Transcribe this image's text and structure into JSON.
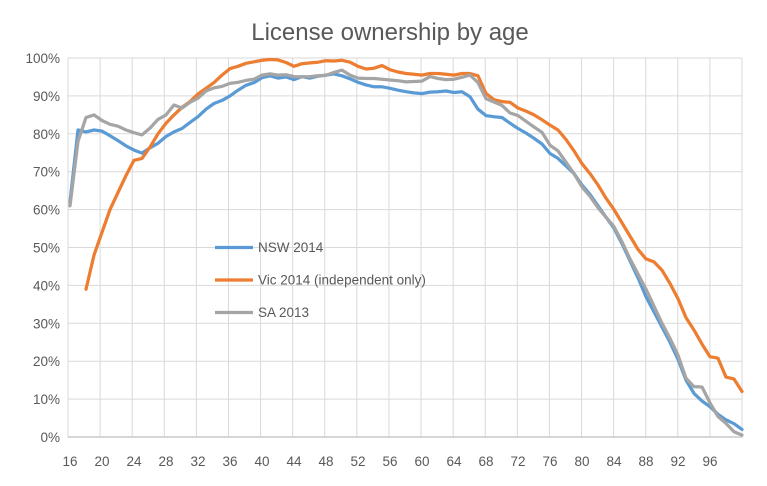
{
  "chart_data": {
    "type": "line",
    "title": "License ownership by age",
    "xlabel": "",
    "ylabel": "",
    "x_range": [
      16,
      100
    ],
    "x_tick_labels": [
      16,
      20,
      24,
      28,
      32,
      36,
      40,
      44,
      48,
      52,
      56,
      60,
      64,
      68,
      72,
      76,
      80,
      84,
      88,
      92,
      96
    ],
    "y_axis": {
      "min": 0,
      "max": 100,
      "step": 10,
      "tick_labels": [
        "0%",
        "10%",
        "20%",
        "30%",
        "40%",
        "50%",
        "60%",
        "70%",
        "80%",
        "90%",
        "100%"
      ]
    },
    "grid": true,
    "legend_position": "inside-left-middle",
    "series": [
      {
        "name": "NSW 2014",
        "color": "#5B9BD5",
        "start_age": 16,
        "values": [
          62,
          81,
          80.5,
          81,
          80.7,
          79.5,
          78.2,
          76.8,
          75.7,
          74.9,
          76.3,
          77.5,
          79.3,
          80.5,
          81.4,
          83,
          84.5,
          86.5,
          88,
          88.8,
          90,
          91.5,
          92.8,
          93.5,
          94.8,
          95.3,
          94.7,
          95,
          94.3,
          95.1,
          94.7,
          95.2,
          95.5,
          95.8,
          95.3,
          94.5,
          93.6,
          92.9,
          92.4,
          92.4,
          92,
          91.5,
          91.1,
          90.8,
          90.6,
          91,
          91.1,
          91.3,
          90.9,
          91.1,
          89.8,
          86.5,
          84.8,
          84.5,
          84.3,
          82.8,
          81.4,
          80.2,
          78.8,
          77.3,
          74.8,
          73.5,
          71.5,
          69.5,
          66.5,
          64,
          61,
          58,
          55.1,
          51,
          46.5,
          42,
          37,
          33,
          29,
          25,
          20.5,
          15,
          11.5,
          9.5,
          8,
          6,
          4.5,
          3.5,
          2
        ]
      },
      {
        "name": "Vic 2014 (independent only)",
        "color": "#ED7D31",
        "start_age": 18,
        "values": [
          39,
          48,
          54,
          60,
          64.5,
          69,
          73,
          73.5,
          76.5,
          80,
          82.8,
          85,
          87,
          88.5,
          90.5,
          92,
          93.5,
          95.5,
          97.2,
          97.8,
          98.6,
          99,
          99.4,
          99.6,
          99.5,
          98.8,
          97.8,
          98.5,
          98.7,
          98.9,
          99.3,
          99.2,
          99.4,
          98.9,
          97.8,
          97.1,
          97.3,
          98,
          96.9,
          96.3,
          95.9,
          95.7,
          95.5,
          95.9,
          95.9,
          95.7,
          95.5,
          95.9,
          95.9,
          95.3,
          90.6,
          89,
          88.5,
          88.3,
          86.8,
          86,
          85,
          83.7,
          82.3,
          81,
          78.5,
          75.5,
          72.1,
          69.5,
          66.5,
          63,
          60,
          56.5,
          53,
          49.5,
          47,
          46.2,
          44,
          40.5,
          36.5,
          31.5,
          28.2,
          24.5,
          21.2,
          20.8,
          15.8,
          15.3,
          12
        ]
      },
      {
        "name": "SA 2013",
        "color": "#A5A5A5",
        "start_age": 16,
        "values": [
          61,
          78,
          84.3,
          85,
          83.5,
          82.5,
          82,
          81,
          80.3,
          79.7,
          81.5,
          83.8,
          85,
          87.6,
          86.8,
          88.3,
          89.4,
          91.3,
          92.1,
          92.5,
          93.3,
          93.6,
          94.1,
          94.4,
          95.5,
          95.8,
          95.5,
          95.6,
          95.1,
          95,
          95.1,
          95.3,
          95.4,
          96.2,
          96.8,
          95.5,
          94.7,
          94.6,
          94.6,
          94.4,
          94.2,
          94,
          93.7,
          93.8,
          93.9,
          95.1,
          94.6,
          94.3,
          94.4,
          94.9,
          95.5,
          93.5,
          89.3,
          88.4,
          87.5,
          85.5,
          84.8,
          83.3,
          81.8,
          80.4,
          77,
          75.5,
          72.5,
          69.5,
          66,
          63.5,
          60.5,
          58,
          55.5,
          51.5,
          47,
          43,
          39,
          34.5,
          30,
          26,
          21.6,
          15.5,
          13.3,
          13.2,
          9,
          5.4,
          3.6,
          1.4,
          0.5
        ]
      }
    ],
    "colors": {
      "gridline": "#D9D9D9",
      "axis_line": "#BFBFBF",
      "text": "#595959",
      "background": "#FFFFFF"
    }
  }
}
